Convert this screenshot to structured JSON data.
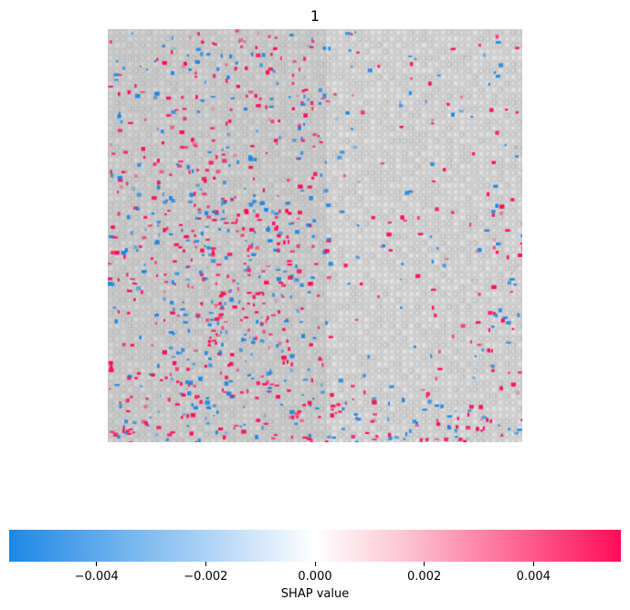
{
  "chart_data": {
    "type": "heatmap",
    "title": "1",
    "colorbar": {
      "label": "SHAP value",
      "range": [
        -0.0056,
        0.0056
      ],
      "ticks": [
        -0.004,
        -0.002,
        0.0,
        0.002,
        0.004
      ],
      "tick_labels": [
        "−0.004",
        "−0.002",
        "0.000",
        "0.002",
        "0.004"
      ],
      "colors": {
        "negative": "#1e88e5",
        "zero": "#ffffff",
        "positive": "#ff0d57"
      }
    },
    "background_image": "grayscale fabric/mesh texture with SHAP overlay",
    "grid": false,
    "axes_visible": false
  }
}
